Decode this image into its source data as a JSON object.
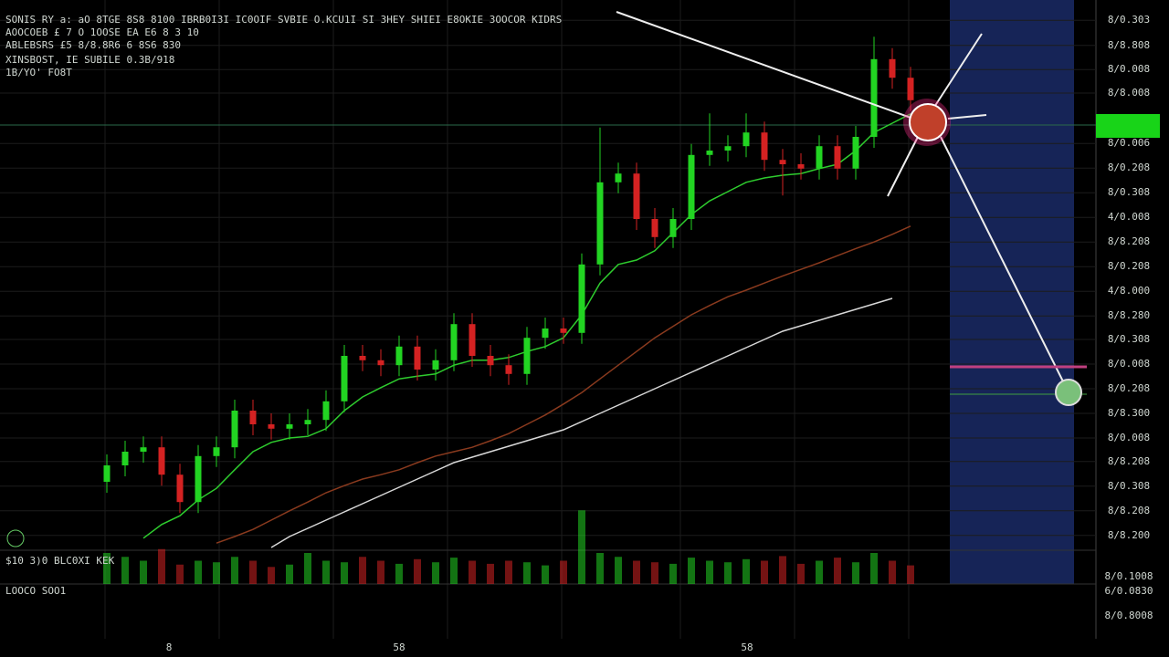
{
  "chart_data": {
    "type": "candlestick",
    "categories": [
      null,
      null,
      null,
      null,
      null,
      null,
      null,
      null,
      null,
      null,
      null,
      null,
      null,
      null,
      null,
      null,
      null,
      null,
      null,
      null,
      null,
      null,
      null,
      null,
      null,
      null,
      null,
      null,
      null,
      null,
      null,
      null,
      null,
      null,
      null,
      null,
      null,
      null,
      null,
      null,
      null,
      null,
      null,
      null,
      null
    ],
    "open": [
      12,
      15,
      17.5,
      18.3,
      13.3,
      8.3,
      16.7,
      18.3,
      25,
      22.5,
      21.7,
      22.5,
      23.3,
      26.7,
      35,
      34.2,
      33.3,
      36.7,
      32.5,
      34.2,
      40.8,
      35,
      33.3,
      31.7,
      38.3,
      40,
      39.2,
      51.7,
      66.7,
      68.3,
      60,
      56.7,
      60,
      71.7,
      72.5,
      73.3,
      75.8,
      70.8,
      70,
      69.2,
      73.3,
      69.2,
      75,
      89.2,
      85.8
    ],
    "high": [
      17,
      19.5,
      20.3,
      20.3,
      15.3,
      18.7,
      20.3,
      27,
      27,
      24.5,
      24.5,
      25.3,
      28.7,
      37,
      37,
      36.2,
      38.7,
      38.7,
      36.2,
      42.8,
      42.8,
      37,
      35.3,
      40.3,
      42,
      42,
      53.7,
      76.7,
      70.3,
      70.3,
      62,
      62,
      73.7,
      79.3,
      75.3,
      79.3,
      77.8,
      72.8,
      72,
      75.3,
      75.3,
      77,
      93.3,
      91.2,
      87.8
    ],
    "low": [
      10,
      13,
      15.5,
      11.3,
      6.3,
      6.3,
      14.7,
      16.3,
      20.5,
      19.7,
      19.7,
      20.5,
      21.3,
      24.7,
      32.2,
      31.3,
      31.3,
      30.5,
      30.5,
      32.2,
      33,
      31.3,
      29.7,
      29.7,
      36.3,
      37.2,
      37.2,
      49.7,
      64.7,
      58,
      54.7,
      54.7,
      58,
      69.7,
      70.5,
      71.3,
      68.8,
      64.3,
      67.2,
      67.2,
      67.2,
      67.2,
      73,
      83.8,
      79.7
    ],
    "close": [
      15,
      17.5,
      18.3,
      13.3,
      8.3,
      16.7,
      18.3,
      25,
      22.5,
      21.7,
      22.5,
      23.3,
      26.7,
      35,
      34.2,
      33.3,
      36.7,
      32.5,
      34.2,
      40.8,
      35,
      33.3,
      31.7,
      38.3,
      40,
      39.2,
      51.7,
      66.7,
      68.3,
      60,
      56.7,
      60,
      71.7,
      72.5,
      73.3,
      75.8,
      70.8,
      70,
      69.2,
      73.3,
      69.2,
      75,
      89.2,
      85.8,
      81.7
    ],
    "volume": [
      40,
      35,
      30,
      45,
      25,
      30,
      28,
      35,
      30,
      22,
      25,
      40,
      30,
      28,
      35,
      30,
      26,
      32,
      28,
      34,
      30,
      26,
      30,
      28,
      24,
      30,
      95,
      40,
      35,
      30,
      28,
      26,
      34,
      30,
      28,
      32,
      30,
      36,
      26,
      30,
      34,
      28,
      40,
      30,
      24
    ],
    "volume_lim": [
      0,
      100
    ],
    "up_color": "#22d422",
    "down_color": "#d42222",
    "lines": [
      {
        "color": "#2ecc2e",
        "values": [
          null,
          null,
          1.7,
          4.2,
          5.8,
          8.7,
          10.8,
          14.2,
          17.5,
          19.2,
          20,
          20.3,
          21.7,
          25,
          27.5,
          29.2,
          30.8,
          31.3,
          31.7,
          33.3,
          34.2,
          34.2,
          34.7,
          35.8,
          36.7,
          38.3,
          42.5,
          48.3,
          51.7,
          52.5,
          54.2,
          57.5,
          60.8,
          63.3,
          65,
          66.7,
          67.5,
          68,
          68.3,
          69.2,
          70,
          72.5,
          75.8,
          77.5,
          79.2
        ]
      },
      {
        "color": "#8a3a1e",
        "values": [
          null,
          null,
          null,
          null,
          null,
          null,
          0.8,
          2,
          3.3,
          5,
          6.7,
          8.3,
          10,
          11.3,
          12.5,
          13.3,
          14.2,
          15.5,
          16.7,
          17.5,
          18.3,
          19.5,
          20.8,
          22.5,
          24.2,
          26.2,
          28.3,
          30.8,
          33.3,
          35.8,
          38.3,
          40.4,
          42.5,
          44.2,
          45.8,
          47,
          48.3,
          49.6,
          50.8,
          52,
          53.3,
          54.6,
          55.8,
          57.2,
          58.7
        ]
      },
      {
        "color": "#d8d8d8",
        "values": [
          null,
          null,
          null,
          null,
          null,
          null,
          null,
          null,
          null,
          0,
          2,
          3.5,
          5,
          6.5,
          8,
          9.5,
          11,
          12.5,
          14,
          15.5,
          16.5,
          17.5,
          18.5,
          19.5,
          20.5,
          21.5,
          23,
          24.5,
          26,
          27.5,
          29,
          30.5,
          32,
          33.5,
          35,
          36.5,
          38,
          39.5,
          40.5,
          41.5,
          42.5,
          43.5,
          44.5,
          45.5,
          null
        ]
      }
    ],
    "ylim": [
      0,
      100
    ],
    "yticks": [
      {
        "value": 96.3,
        "label": "8/0.303"
      },
      {
        "value": 91.7,
        "label": "8/8.808"
      },
      {
        "value": 87.3,
        "label": "8/0.008"
      },
      {
        "value": 83,
        "label": "8/8.008"
      },
      {
        "value": 73.8,
        "label": "8/0.006"
      },
      {
        "value": 69.3,
        "label": "8/0.208"
      },
      {
        "value": 64.8,
        "label": "8/0.308"
      },
      {
        "value": 60.3,
        "label": "4/0.008"
      },
      {
        "value": 55.8,
        "label": "8/8.208"
      },
      {
        "value": 51.3,
        "label": "8/0.208"
      },
      {
        "value": 46.8,
        "label": "4/8.000"
      },
      {
        "value": 42.3,
        "label": "8/8.280"
      },
      {
        "value": 38,
        "label": "8/0.308"
      },
      {
        "value": 33.5,
        "label": "8/0.008"
      },
      {
        "value": 29,
        "label": "8/0.208"
      },
      {
        "value": 24.5,
        "label": "8/8.300"
      },
      {
        "value": 20,
        "label": "8/0.008"
      },
      {
        "value": 15.7,
        "label": "8/8.208"
      },
      {
        "value": 11.2,
        "label": "8/0.308"
      },
      {
        "value": 6.7,
        "label": "8/8.208"
      },
      {
        "value": 2.2,
        "label": "8/8.200"
      }
    ],
    "grid": true,
    "annotations": [
      "SONIS RY  a: aO  8TGE  8S8  8100  IBRB0I3I  IC0OIF  SVBIE  O.KCU1I  SI  3HEY  SHIEI  E8OKIE  3OOCOR  KIDRS",
      "AOOCOEB  £ 7  O 1OOSE  EA  E6  8  3 10",
      "ABLEBSRS  £5   8/8.8R6  6   8S6  830",
      "XINSBOST,  IE   SUBILE   0.3B/918",
      "1B/YO' FO8T",
      "$10 3)0 BLC0XI  KEK",
      "LOOCO SOO1",
      "8/0.1008",
      "6/0.0830",
      "8/0.8008",
      "8",
      "58",
      "58"
    ]
  }
}
